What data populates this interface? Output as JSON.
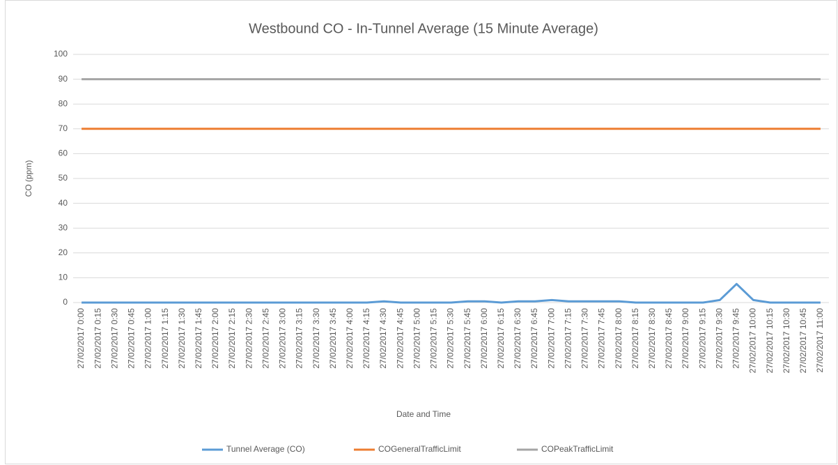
{
  "chart_data": {
    "type": "line",
    "title": "Westbound CO - In-Tunnel Average (15 Minute Average)",
    "x_label": "Date and Time",
    "y_label": "CO (ppm)",
    "categories": [
      "27/02/2017 0:00",
      "27/02/2017 0:15",
      "27/02/2017 0:30",
      "27/02/2017 0:45",
      "27/02/2017 1:00",
      "27/02/2017 1:15",
      "27/02/2017 1:30",
      "27/02/2017 1:45",
      "27/02/2017 2:00",
      "27/02/2017 2:15",
      "27/02/2017 2:30",
      "27/02/2017 2:45",
      "27/02/2017 3:00",
      "27/02/2017 3:15",
      "27/02/2017 3:30",
      "27/02/2017 3:45",
      "27/02/2017 4:00",
      "27/02/2017 4:15",
      "27/02/2017 4:30",
      "27/02/2017 4:45",
      "27/02/2017 5:00",
      "27/02/2017 5:15",
      "27/02/2017 5:30",
      "27/02/2017 5:45",
      "27/02/2017 6:00",
      "27/02/2017 6:15",
      "27/02/2017 6:30",
      "27/02/2017 6:45",
      "27/02/2017 7:00",
      "27/02/2017 7:15",
      "27/02/2017 7:30",
      "27/02/2017 7:45",
      "27/02/2017 8:00",
      "27/02/2017 8:15",
      "27/02/2017 8:30",
      "27/02/2017 8:45",
      "27/02/2017 9:00",
      "27/02/2017 9:15",
      "27/02/2017 9:30",
      "27/02/2017 9:45",
      "27/02/2017 10:00",
      "27/02/2017 10:15",
      "27/02/2017 10:30",
      "27/02/2017 10:45",
      "27/02/2017 11:00"
    ],
    "series": [
      {
        "name": "Tunnel Average (CO)",
        "color": "#5b9bd5",
        "values": [
          0,
          0,
          0,
          0,
          0,
          0,
          0,
          0,
          0,
          0,
          0,
          0,
          0,
          0,
          0,
          0,
          0,
          0,
          0.5,
          0,
          0,
          0,
          0,
          0.5,
          0.5,
          0,
          0.5,
          0.5,
          1,
          0.5,
          0.5,
          0.5,
          0.5,
          0,
          0,
          0,
          0,
          0,
          1,
          7.5,
          1,
          0,
          0,
          0,
          0
        ]
      },
      {
        "name": "COGeneralTrafficLimit",
        "color": "#ed7d31",
        "values": [
          70,
          70,
          70,
          70,
          70,
          70,
          70,
          70,
          70,
          70,
          70,
          70,
          70,
          70,
          70,
          70,
          70,
          70,
          70,
          70,
          70,
          70,
          70,
          70,
          70,
          70,
          70,
          70,
          70,
          70,
          70,
          70,
          70,
          70,
          70,
          70,
          70,
          70,
          70,
          70,
          70,
          70,
          70,
          70,
          70
        ]
      },
      {
        "name": "COPeakTrafficLimit",
        "color": "#a5a5a5",
        "values": [
          90,
          90,
          90,
          90,
          90,
          90,
          90,
          90,
          90,
          90,
          90,
          90,
          90,
          90,
          90,
          90,
          90,
          90,
          90,
          90,
          90,
          90,
          90,
          90,
          90,
          90,
          90,
          90,
          90,
          90,
          90,
          90,
          90,
          90,
          90,
          90,
          90,
          90,
          90,
          90,
          90,
          90,
          90,
          90,
          90
        ]
      }
    ],
    "ylim": [
      0,
      100
    ],
    "yticks": [
      0,
      10,
      20,
      30,
      40,
      50,
      60,
      70,
      80,
      90,
      100
    ],
    "grid": true,
    "legend": "bottom"
  }
}
